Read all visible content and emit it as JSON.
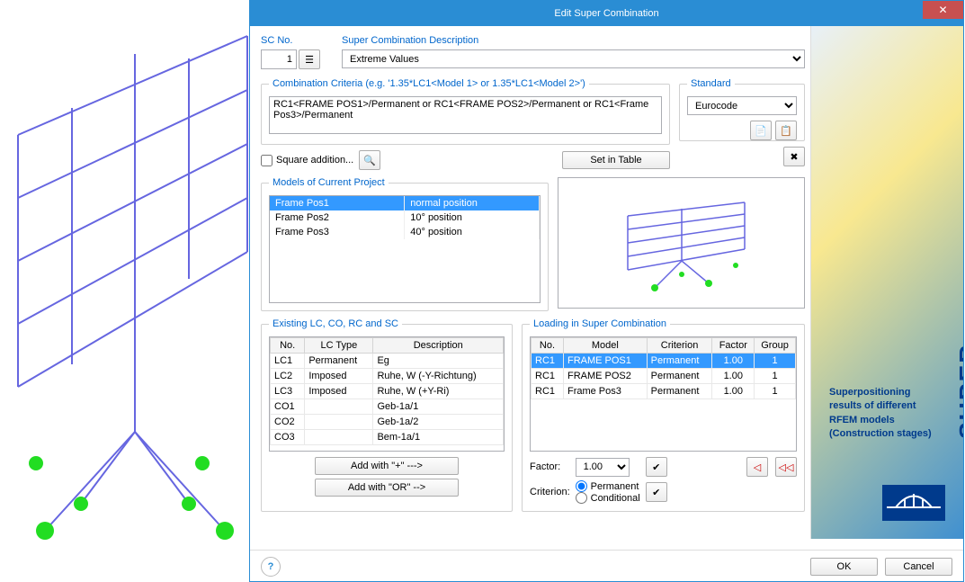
{
  "title": "Edit Super Combination",
  "sc": {
    "label": "SC No.",
    "value": "1"
  },
  "desc": {
    "label": "Super Combination Description",
    "value": "Extreme Values"
  },
  "criteria": {
    "label": "Combination Criteria (e.g. '1.35*LC1<Model 1> or 1.35*LC1<Model 2>')",
    "value": "RC1<FRAME POS1>/Permanent or RC1<FRAME POS2>/Permanent or RC1<Frame Pos3>/Permanent"
  },
  "square_addition": "Square addition...",
  "set_in_table": "Set in Table",
  "standard": {
    "label": "Standard",
    "value": "Eurocode"
  },
  "models": {
    "label": "Models of Current Project",
    "rows": [
      {
        "name": "Frame Pos1",
        "pos": "normal position",
        "sel": true
      },
      {
        "name": "Frame Pos2",
        "pos": "10° position"
      },
      {
        "name": "Frame Pos3",
        "pos": "40° position"
      }
    ]
  },
  "existing": {
    "label": "Existing LC, CO, RC and SC",
    "cols": [
      "No.",
      "LC Type",
      "Description"
    ],
    "rows": [
      [
        "LC1",
        "Permanent",
        "Eg"
      ],
      [
        "LC2",
        "Imposed",
        "Ruhe, W (-Y-Richtung)"
      ],
      [
        "LC3",
        "Imposed",
        "Ruhe, W (+Y-Ri)"
      ],
      [
        "CO1",
        "",
        "Geb-1a/1"
      ],
      [
        "CO2",
        "",
        "Geb-1a/2"
      ],
      [
        "CO3",
        "",
        "Bem-1a/1"
      ]
    ],
    "add_plus": "Add with  \"+\"  --->",
    "add_or": "Add with  \"OR\" -->"
  },
  "loading": {
    "label": "Loading in Super Combination",
    "cols": [
      "No.",
      "Model",
      "Criterion",
      "Factor",
      "Group"
    ],
    "rows": [
      {
        "c": [
          "RC1",
          "FRAME POS1",
          "Permanent",
          "1.00",
          "1"
        ],
        "sel": true
      },
      {
        "c": [
          "RC1",
          "FRAME POS2",
          "Permanent",
          "1.00",
          "1"
        ]
      },
      {
        "c": [
          "RC1",
          "Frame Pos3",
          "Permanent",
          "1.00",
          "1"
        ]
      }
    ],
    "factor_label": "Factor:",
    "factor_value": "1.00",
    "criterion_label": "Criterion:",
    "criterion_permanent": "Permanent",
    "criterion_conditional": "Conditional"
  },
  "sidebar": {
    "title": "SUPER-RC",
    "blurb": "Superpositioning results of different RFEM models (Construction stages)"
  },
  "buttons": {
    "ok": "OK",
    "cancel": "Cancel"
  },
  "colors": {
    "accent": "#2a8dd4",
    "sel": "#3399ff",
    "link": "#0066cc"
  }
}
